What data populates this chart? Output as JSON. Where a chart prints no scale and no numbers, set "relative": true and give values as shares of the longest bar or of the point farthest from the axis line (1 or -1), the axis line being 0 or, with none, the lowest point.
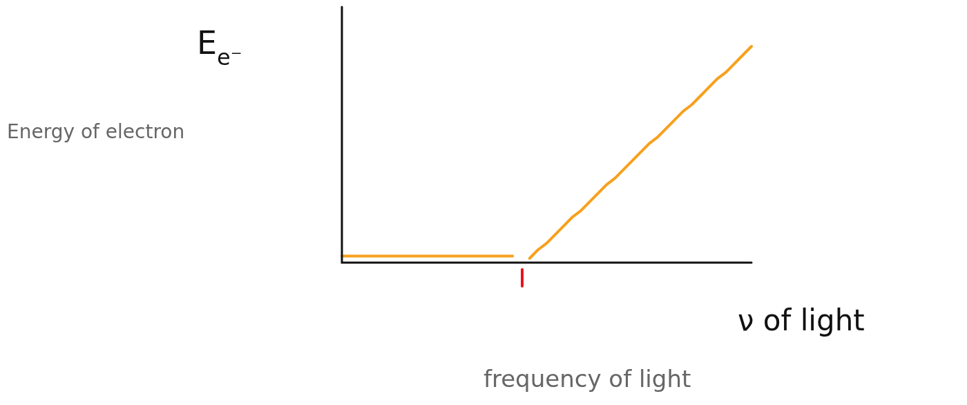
{
  "chart_data": {
    "type": "line",
    "relative": true,
    "ylabel": "E$_{e⁻}$",
    "xlabel": "ν of light",
    "annotations": [
      "Energy of electron",
      "frequency of light"
    ],
    "categories": [
      null,
      null,
      null,
      null,
      null,
      null,
      null,
      null,
      null,
      null,
      null,
      null,
      null,
      null,
      null,
      null,
      null,
      null,
      null,
      null,
      null,
      null,
      null,
      null,
      null,
      null,
      null,
      null,
      null,
      null,
      null,
      null,
      null,
      null,
      null,
      null,
      null,
      null,
      null,
      null,
      null,
      null,
      null,
      null,
      null,
      null,
      null,
      null,
      null
    ],
    "series": [
      {
        "color": "#f7a01c",
        "values": [
          0.03,
          0.03,
          0.03,
          0.03,
          0.03,
          0.03,
          0.03,
          0.03,
          0.03,
          0.03,
          0.03,
          0.03,
          0.03,
          0.03,
          0.03,
          0.03,
          0.03,
          0.03,
          0.03,
          0.03,
          0.03,
          null,
          null,
          null,
          null,
          null,
          null,
          null,
          null,
          null,
          null,
          null,
          null,
          null,
          null,
          null,
          null,
          null,
          null,
          null,
          null,
          null,
          null,
          null,
          null,
          null,
          null,
          null,
          null
        ]
      },
      {
        "color": "#f7a01c",
        "values": [
          null,
          null,
          null,
          null,
          null,
          null,
          null,
          null,
          null,
          null,
          null,
          null,
          null,
          null,
          null,
          null,
          null,
          null,
          null,
          null,
          null,
          null,
          0.02,
          0.06,
          0.09,
          0.13,
          0.17,
          0.21,
          0.24,
          0.28,
          0.32,
          0.36,
          0.39,
          0.43,
          0.47,
          0.51,
          0.55,
          0.58,
          0.62,
          0.66,
          0.7,
          0.73,
          0.77,
          0.81,
          0.85,
          0.88,
          0.92,
          0.96,
          1
        ]
      }
    ],
    "legend": false,
    "marker": "none",
    "line_style": "solid"
  }
}
